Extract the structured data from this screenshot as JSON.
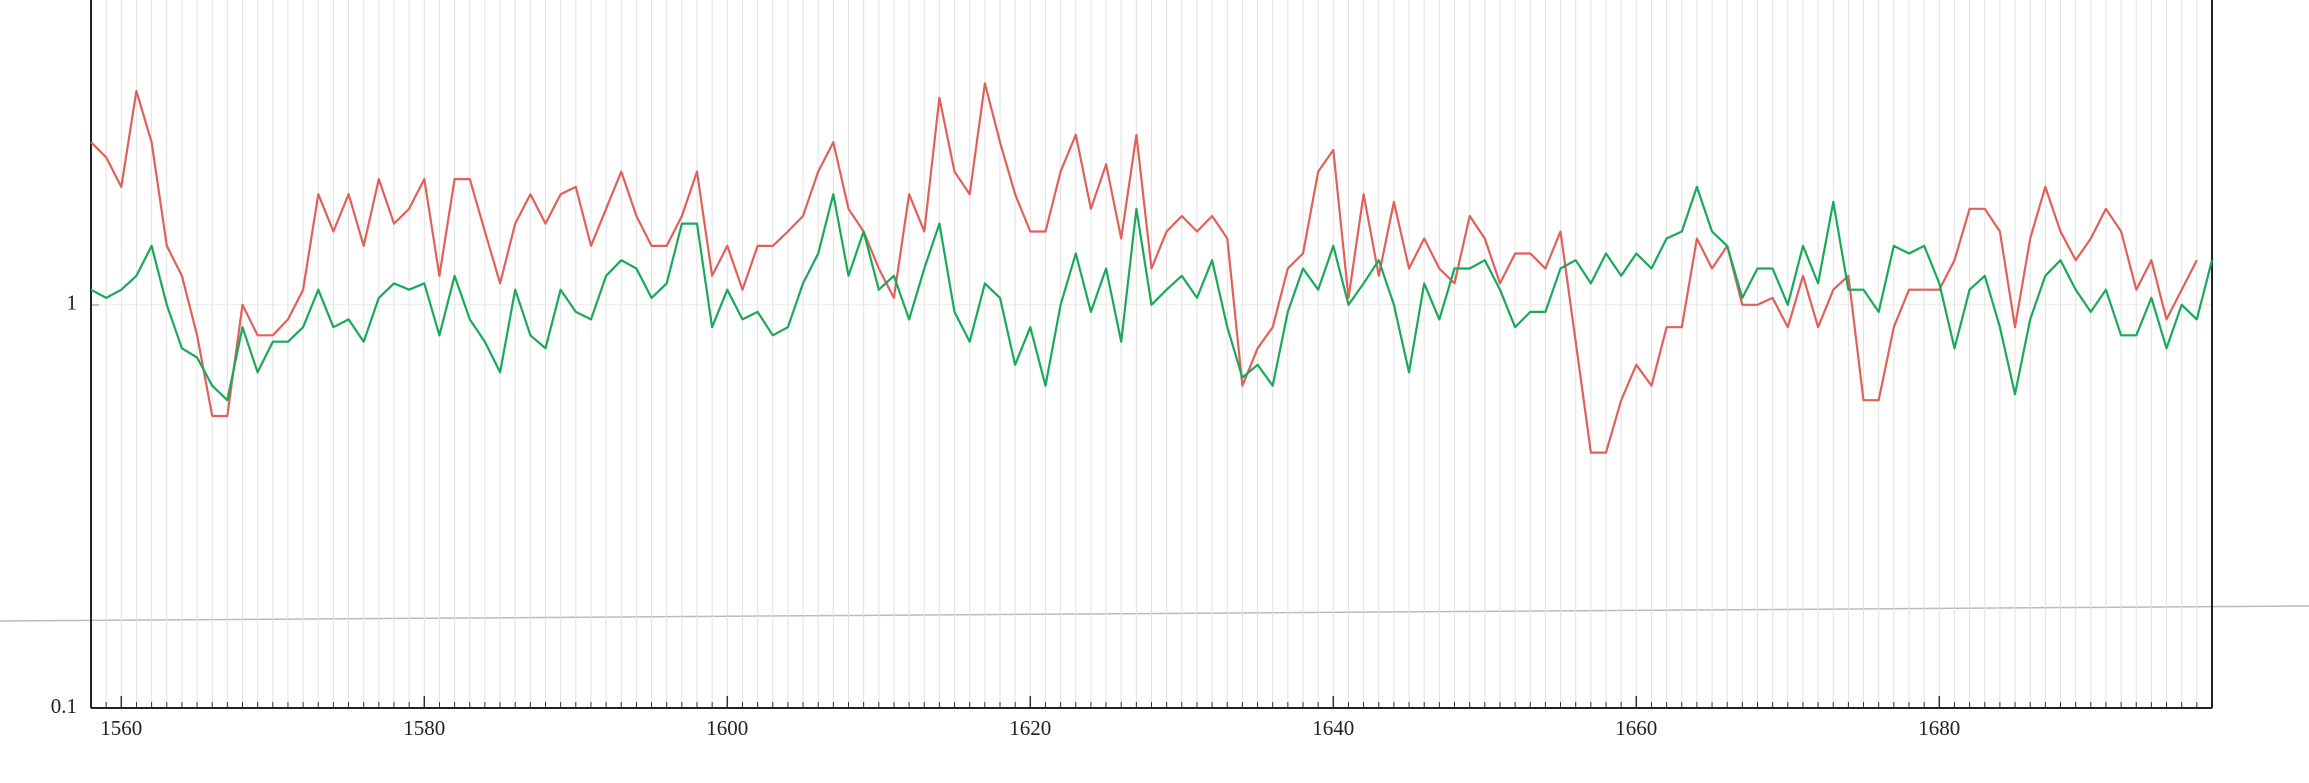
{
  "chart_data": {
    "type": "line",
    "x": [
      1558,
      1559,
      1560,
      1561,
      1562,
      1563,
      1564,
      1565,
      1566,
      1567,
      1568,
      1569,
      1570,
      1571,
      1572,
      1573,
      1574,
      1575,
      1576,
      1577,
      1578,
      1579,
      1580,
      1581,
      1582,
      1583,
      1584,
      1585,
      1586,
      1587,
      1588,
      1589,
      1590,
      1591,
      1592,
      1593,
      1594,
      1595,
      1596,
      1597,
      1598,
      1599,
      1600,
      1601,
      1602,
      1603,
      1604,
      1605,
      1606,
      1607,
      1608,
      1609,
      1610,
      1611,
      1612,
      1613,
      1614,
      1615,
      1616,
      1617,
      1618,
      1619,
      1620,
      1621,
      1622,
      1623,
      1624,
      1625,
      1626,
      1627,
      1628,
      1629,
      1630,
      1631,
      1632,
      1633,
      1634,
      1635,
      1636,
      1637,
      1638,
      1639,
      1640,
      1641,
      1642,
      1643,
      1644,
      1645,
      1646,
      1647,
      1648,
      1649,
      1650,
      1651,
      1652,
      1653,
      1654,
      1655,
      1656,
      1657,
      1658,
      1659,
      1660,
      1661,
      1662,
      1663,
      1664,
      1665,
      1666,
      1667,
      1668,
      1669,
      1670,
      1671,
      1672,
      1673,
      1674,
      1675,
      1676,
      1677,
      1678,
      1679,
      1680,
      1681,
      1682,
      1683,
      1684,
      1685,
      1686,
      1687,
      1688,
      1689,
      1690,
      1691,
      1692,
      1693,
      1694,
      1695,
      1696,
      1697,
      1698
    ],
    "series": [
      {
        "color": "#e0605a",
        "values": [
          2.53,
          2.32,
          1.96,
          3.39,
          2.53,
          1.4,
          1.18,
          0.84,
          0.53,
          0.53,
          1.0,
          0.84,
          0.84,
          0.92,
          1.09,
          1.88,
          1.52,
          1.88,
          1.4,
          2.05,
          1.59,
          1.73,
          2.05,
          1.18,
          2.05,
          2.05,
          1.52,
          1.13,
          1.59,
          1.88,
          1.59,
          1.88,
          1.96,
          1.4,
          1.73,
          2.14,
          1.66,
          1.4,
          1.4,
          1.66,
          2.14,
          1.18,
          1.4,
          1.09,
          1.4,
          1.4,
          1.52,
          1.66,
          2.14,
          2.53,
          1.73,
          1.52,
          1.23,
          1.04,
          1.88,
          1.52,
          3.26,
          2.14,
          1.88,
          3.54,
          2.53,
          1.88,
          1.52,
          1.52,
          2.14,
          2.64,
          1.73,
          2.23,
          1.46,
          2.64,
          1.23,
          1.52,
          1.66,
          1.52,
          1.66,
          1.46,
          0.63,
          0.78,
          0.88,
          1.23,
          1.34,
          2.14,
          2.42,
          1.04,
          1.88,
          1.18,
          1.8,
          1.23,
          1.46,
          1.23,
          1.13,
          1.66,
          1.46,
          1.13,
          1.34,
          1.34,
          1.23,
          1.52,
          0.81,
          0.43,
          0.43,
          0.58,
          0.71,
          0.63,
          0.88,
          0.88,
          1.46,
          1.23,
          1.4,
          1.0,
          1.0,
          1.04,
          0.88,
          1.18,
          0.88,
          1.09,
          1.18,
          0.58,
          0.58,
          0.88,
          1.09,
          1.09,
          1.09,
          1.29,
          1.73,
          1.73,
          1.52,
          0.88,
          1.46,
          1.96,
          1.52,
          1.29,
          1.46,
          1.73,
          1.52,
          1.09,
          1.29,
          0.92,
          1.09,
          1.29,
          null
        ]
      },
      {
        "color": "#1aa85a",
        "values": [
          1.09,
          1.04,
          1.09,
          1.18,
          1.4,
          1.0,
          0.78,
          0.74,
          0.63,
          0.58,
          0.88,
          0.68,
          0.81,
          0.81,
          0.88,
          1.09,
          0.88,
          0.92,
          0.81,
          1.04,
          1.13,
          1.09,
          1.13,
          0.84,
          1.18,
          0.92,
          0.81,
          0.68,
          1.09,
          0.84,
          0.78,
          1.09,
          0.96,
          0.92,
          1.18,
          1.29,
          1.23,
          1.04,
          1.13,
          1.59,
          1.59,
          0.88,
          1.09,
          0.92,
          0.96,
          0.84,
          0.88,
          1.13,
          1.34,
          1.88,
          1.18,
          1.52,
          1.09,
          1.18,
          0.92,
          1.23,
          1.59,
          0.96,
          0.81,
          1.13,
          1.04,
          0.71,
          0.88,
          0.63,
          1.0,
          1.34,
          0.96,
          1.23,
          0.81,
          1.73,
          1.0,
          1.09,
          1.18,
          1.04,
          1.29,
          0.88,
          0.66,
          0.71,
          0.63,
          0.96,
          1.23,
          1.09,
          1.4,
          1.0,
          1.13,
          1.29,
          1.0,
          0.68,
          1.13,
          0.92,
          1.23,
          1.23,
          1.29,
          1.09,
          0.88,
          0.96,
          0.96,
          1.23,
          1.29,
          1.13,
          1.34,
          1.18,
          1.34,
          1.23,
          1.46,
          1.52,
          1.96,
          1.52,
          1.4,
          1.04,
          1.23,
          1.23,
          1.0,
          1.4,
          1.13,
          1.8,
          1.09,
          1.09,
          0.96,
          1.4,
          1.34,
          1.4,
          1.13,
          0.78,
          1.09,
          1.18,
          0.88,
          0.6,
          0.92,
          1.18,
          1.29,
          1.09,
          0.96,
          1.09,
          0.84,
          0.84,
          1.04,
          0.78,
          1.0,
          0.92,
          1.29
        ]
      }
    ],
    "xlim": [
      1558,
      1698
    ],
    "xticks": [
      1560,
      1580,
      1600,
      1620,
      1640,
      1660,
      1680
    ],
    "ylim": [
      0.1,
      5.7
    ],
    "yticks": [
      0.1,
      1
    ],
    "log_y": true,
    "grid": true
  }
}
